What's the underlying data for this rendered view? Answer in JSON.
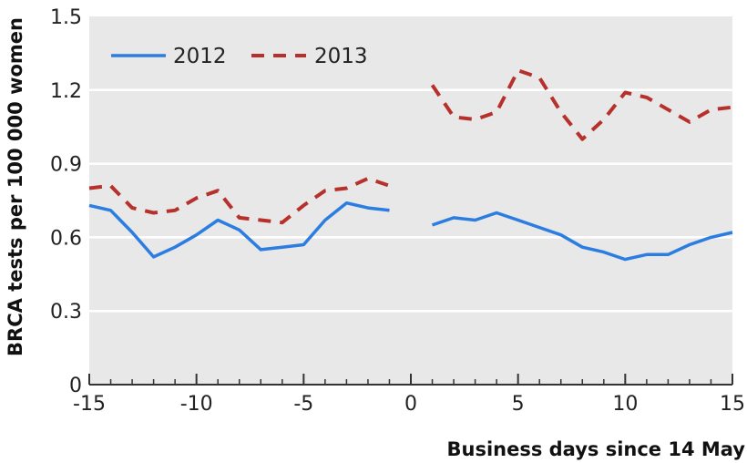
{
  "chart_data": {
    "type": "line",
    "title": "",
    "xlabel": "Business days since 14 May",
    "ylabel": "BRCA tests per 100 000 women",
    "xlim": [
      -15,
      15
    ],
    "ylim": [
      0,
      1.5
    ],
    "x_ticks": [
      "-15",
      "-10",
      "-5",
      "0",
      "5",
      "10",
      "15"
    ],
    "y_ticks": [
      "0",
      "0.3",
      "0.6",
      "0.9",
      "1.2",
      "1.5"
    ],
    "grid": true,
    "legend": "top-left",
    "series": [
      {
        "name": "2012",
        "color": "#2b7de1",
        "style": "solid",
        "segments": [
          {
            "x": [
              -15,
              -14,
              -13,
              -12,
              -11,
              -10,
              -9,
              -8,
              -7,
              -6,
              -5,
              -4,
              -3,
              -2,
              -1
            ],
            "y": [
              0.73,
              0.71,
              0.62,
              0.52,
              0.56,
              0.61,
              0.67,
              0.63,
              0.55,
              0.56,
              0.57,
              0.67,
              0.74,
              0.72,
              0.71
            ]
          },
          {
            "x": [
              1,
              2,
              3,
              4,
              5,
              6,
              7,
              8,
              9,
              10,
              11,
              12,
              13,
              14,
              15
            ],
            "y": [
              0.65,
              0.68,
              0.67,
              0.7,
              0.67,
              0.64,
              0.61,
              0.56,
              0.54,
              0.51,
              0.53,
              0.53,
              0.57,
              0.6,
              0.62
            ]
          }
        ]
      },
      {
        "name": "2013",
        "color": "#b7312c",
        "style": "dashed",
        "segments": [
          {
            "x": [
              -15,
              -14,
              -13,
              -12,
              -11,
              -10,
              -9,
              -8,
              -7,
              -6,
              -5,
              -4,
              -3,
              -2,
              -1
            ],
            "y": [
              0.8,
              0.81,
              0.72,
              0.7,
              0.71,
              0.76,
              0.79,
              0.68,
              0.67,
              0.66,
              0.73,
              0.79,
              0.8,
              0.84,
              0.81
            ]
          },
          {
            "x": [
              1,
              2,
              3,
              4,
              5,
              6,
              7,
              8,
              9,
              10,
              11,
              12,
              13,
              14,
              15
            ],
            "y": [
              1.22,
              1.09,
              1.08,
              1.11,
              1.28,
              1.25,
              1.11,
              1.0,
              1.08,
              1.19,
              1.17,
              1.12,
              1.07,
              1.12,
              1.13
            ]
          }
        ]
      }
    ]
  }
}
